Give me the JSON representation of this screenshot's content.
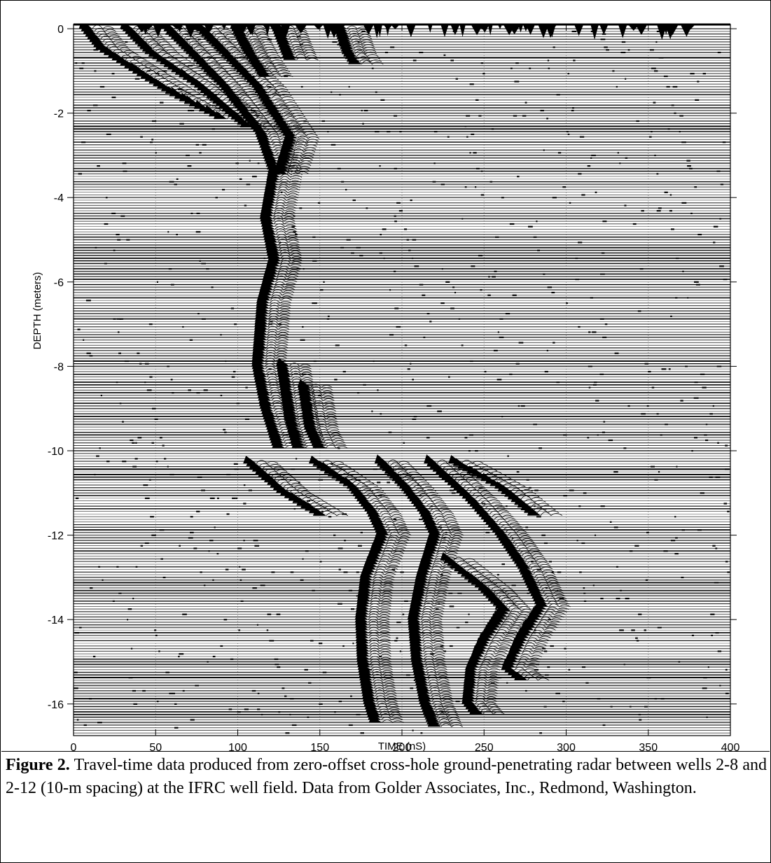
{
  "chart_data": {
    "type": "scatter",
    "title": "",
    "xlabel": "TIME (nS)",
    "ylabel": "DEPTH (meters)",
    "xlim": [
      0,
      400
    ],
    "ylim": [
      -16.75,
      0.1
    ],
    "x_ticks": [
      0,
      50,
      100,
      150,
      200,
      250,
      300,
      350,
      400
    ],
    "y_ticks": [
      0,
      -2,
      -4,
      -6,
      -8,
      -10,
      -12,
      -14,
      -16
    ],
    "x_tick_labels": [
      "0",
      "50",
      "100",
      "150",
      "200",
      "250",
      "300",
      "350",
      "400"
    ],
    "y_tick_labels": [
      "0",
      "-2",
      "-4",
      "-6",
      "-8",
      "-10",
      "-12",
      "-14",
      "-16"
    ],
    "grid": true,
    "trace_spacing_m": 0.0625,
    "series": [
      {
        "points": [
          [
            5,
            0.0
          ],
          [
            15,
            -0.5
          ],
          [
            35,
            -1.0
          ],
          [
            60,
            -1.6
          ],
          [
            90,
            -2.2
          ]
        ]
      },
      {
        "points": [
          [
            30,
            0.0
          ],
          [
            45,
            -0.6
          ],
          [
            75,
            -1.4
          ],
          [
            105,
            -2.4
          ]
        ]
      },
      {
        "points": [
          [
            55,
            0.0
          ],
          [
            70,
            -0.6
          ],
          [
            90,
            -1.4
          ],
          [
            112,
            -2.5
          ],
          [
            120,
            -3.4
          ],
          [
            115,
            -4.5
          ],
          [
            120,
            -5.5
          ],
          [
            113,
            -6.5
          ],
          [
            110,
            -8.0
          ],
          [
            115,
            -9.0
          ],
          [
            123,
            -10.0
          ]
        ]
      },
      {
        "points": [
          [
            75,
            0.0
          ],
          [
            90,
            -0.6
          ],
          [
            110,
            -1.4
          ],
          [
            130,
            -2.6
          ],
          [
            123,
            -3.5
          ]
        ]
      },
      {
        "points": [
          [
            97,
            0.0
          ],
          [
            105,
            -0.6
          ],
          [
            115,
            -1.2
          ]
        ]
      },
      {
        "points": [
          [
            122,
            0.0
          ],
          [
            130,
            -0.8
          ]
        ]
      },
      {
        "points": [
          [
            160,
            0.0
          ],
          [
            165,
            -0.6
          ],
          [
            170,
            -0.9
          ]
        ]
      },
      {
        "points": [
          [
            125,
            -8.0
          ],
          [
            130,
            -9.3
          ],
          [
            135,
            -10.0
          ]
        ]
      },
      {
        "points": [
          [
            138,
            -8.5
          ],
          [
            142,
            -9.5
          ],
          [
            148,
            -10.0
          ]
        ]
      },
      {
        "points": [
          [
            105,
            -10.3
          ],
          [
            125,
            -11.0
          ],
          [
            150,
            -11.6
          ]
        ]
      },
      {
        "points": [
          [
            145,
            -10.3
          ],
          [
            168,
            -10.9
          ],
          [
            180,
            -11.5
          ],
          [
            186,
            -12.0
          ],
          [
            176,
            -13.0
          ],
          [
            173,
            -14.0
          ],
          [
            174,
            -15.0
          ],
          [
            178,
            -16.0
          ],
          [
            182,
            -16.5
          ]
        ]
      },
      {
        "points": [
          [
            185,
            -10.3
          ],
          [
            200,
            -10.9
          ],
          [
            212,
            -11.5
          ],
          [
            218,
            -12.0
          ],
          [
            210,
            -13.0
          ],
          [
            205,
            -14.0
          ],
          [
            207,
            -15.0
          ],
          [
            212,
            -16.0
          ],
          [
            218,
            -16.6
          ]
        ]
      },
      {
        "points": [
          [
            215,
            -10.3
          ],
          [
            240,
            -11.2
          ],
          [
            258,
            -12.0
          ],
          [
            272,
            -12.8
          ],
          [
            283,
            -13.7
          ],
          [
            270,
            -14.5
          ],
          [
            262,
            -15.2
          ],
          [
            272,
            -15.5
          ]
        ]
      },
      {
        "points": [
          [
            225,
            -12.6
          ],
          [
            248,
            -13.3
          ],
          [
            260,
            -13.8
          ],
          [
            248,
            -14.5
          ],
          [
            240,
            -15.2
          ],
          [
            238,
            -16.0
          ],
          [
            244,
            -16.3
          ]
        ]
      },
      {
        "points": [
          [
            230,
            -10.3
          ],
          [
            258,
            -10.9
          ],
          [
            280,
            -11.6
          ]
        ]
      }
    ]
  },
  "caption": {
    "figure_label": "Figure 2.",
    "text": "Travel-time data produced from zero-offset cross-hole ground-penetrating radar between wells 2-8 and 2-12 (10-m spacing) at the IFRC well field. Data from Golder Associates, Inc., Redmond, Washington."
  }
}
